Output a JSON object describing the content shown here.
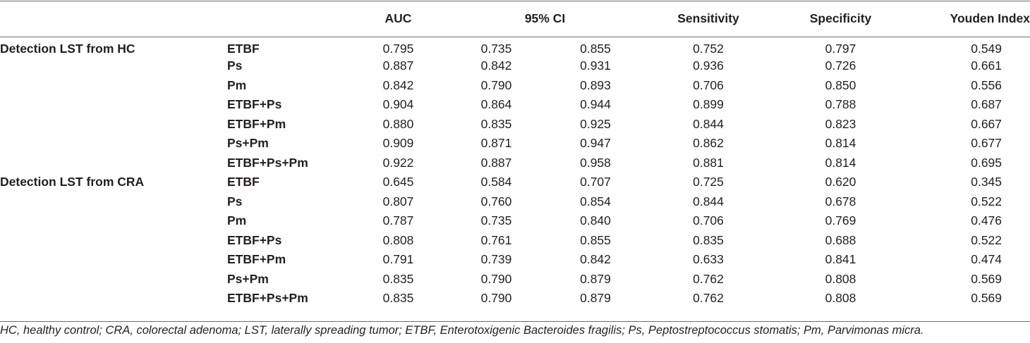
{
  "table": {
    "headers": {
      "auc": "AUC",
      "ci": "95% CI",
      "sensitivity": "Sensitivity",
      "specificity": "Specificity",
      "youden": "Youden Index"
    },
    "groups": [
      {
        "label": "Detection LST from HC",
        "rows": [
          {
            "model": "ETBF",
            "auc": "0.795",
            "ci_low": "0.735",
            "ci_high": "0.855",
            "sensitivity": "0.752",
            "specificity": "0.797",
            "youden": "0.549"
          },
          {
            "model": "Ps",
            "auc": "0.887",
            "ci_low": "0.842",
            "ci_high": "0.931",
            "sensitivity": "0.936",
            "specificity": "0.726",
            "youden": "0.661"
          },
          {
            "model": "Pm",
            "auc": "0.842",
            "ci_low": "0.790",
            "ci_high": "0.893",
            "sensitivity": "0.706",
            "specificity": "0.850",
            "youden": "0.556"
          },
          {
            "model": "ETBF+Ps",
            "auc": "0.904",
            "ci_low": "0.864",
            "ci_high": "0.944",
            "sensitivity": "0.899",
            "specificity": "0.788",
            "youden": "0.687"
          },
          {
            "model": "ETBF+Pm",
            "auc": "0.880",
            "ci_low": "0.835",
            "ci_high": "0.925",
            "sensitivity": "0.844",
            "specificity": "0.823",
            "youden": "0.667"
          },
          {
            "model": "Ps+Pm",
            "auc": "0.909",
            "ci_low": "0.871",
            "ci_high": "0.947",
            "sensitivity": "0.862",
            "specificity": "0.814",
            "youden": "0.677"
          },
          {
            "model": "ETBF+Ps+Pm",
            "auc": "0.922",
            "ci_low": "0.887",
            "ci_high": "0.958",
            "sensitivity": "0.881",
            "specificity": "0.814",
            "youden": "0.695"
          }
        ]
      },
      {
        "label": "Detection LST from CRA",
        "rows": [
          {
            "model": "ETBF",
            "auc": "0.645",
            "ci_low": "0.584",
            "ci_high": "0.707",
            "sensitivity": "0.725",
            "specificity": "0.620",
            "youden": "0.345"
          },
          {
            "model": "Ps",
            "auc": "0.807",
            "ci_low": "0.760",
            "ci_high": "0.854",
            "sensitivity": "0.844",
            "specificity": "0.678",
            "youden": "0.522"
          },
          {
            "model": "Pm",
            "auc": "0.787",
            "ci_low": "0.735",
            "ci_high": "0.840",
            "sensitivity": "0.706",
            "specificity": "0.769",
            "youden": "0.476"
          },
          {
            "model": "ETBF+Ps",
            "auc": "0.808",
            "ci_low": "0.761",
            "ci_high": "0.855",
            "sensitivity": "0.835",
            "specificity": "0.688",
            "youden": "0.522"
          },
          {
            "model": "ETBF+Pm",
            "auc": "0.791",
            "ci_low": "0.739",
            "ci_high": "0.842",
            "sensitivity": "0.633",
            "specificity": "0.841",
            "youden": "0.474"
          },
          {
            "model": "Ps+Pm",
            "auc": "0.835",
            "ci_low": "0.790",
            "ci_high": "0.879",
            "sensitivity": "0.762",
            "specificity": "0.808",
            "youden": "0.569"
          },
          {
            "model": "ETBF+Ps+Pm",
            "auc": "0.835",
            "ci_low": "0.790",
            "ci_high": "0.879",
            "sensitivity": "0.762",
            "specificity": "0.808",
            "youden": "0.569"
          }
        ]
      }
    ]
  },
  "footnote": "HC, healthy control; CRA, colorectal adenoma; LST, laterally spreading tumor; ETBF, Enterotoxigenic Bacteroides fragilis; Ps, Peptostreptococcus stomatis; Pm, Parvimonas micra."
}
